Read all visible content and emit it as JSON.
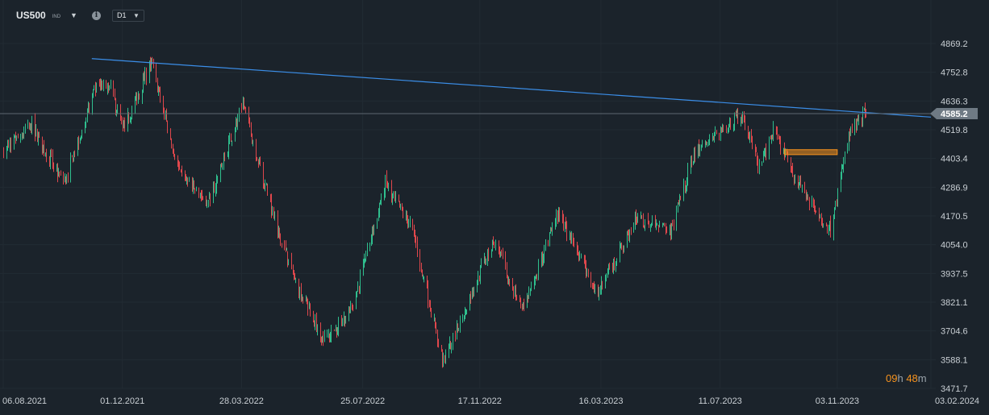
{
  "header": {
    "symbol": "US500",
    "symbol_type": "IND",
    "timeframe": "D1"
  },
  "countdown": {
    "hours": "09",
    "hours_unit": "h",
    "minutes": "48",
    "minutes_unit": "m"
  },
  "colors": {
    "background": "#1b232b",
    "up": "#2fbf8e",
    "down": "#e0474c",
    "trendline": "#3b8ee8",
    "current_price_tag": "#6f7a84",
    "zone": "#f7931e"
  },
  "chart_data": {
    "type": "candlestick",
    "symbol": "US500",
    "timeframe": "D1",
    "ylim": [
      3471.7,
      4940
    ],
    "y_ticks": [
      "4869.2",
      "4752.8",
      "4636.3",
      "4519.8",
      "4403.4",
      "4286.9",
      "4170.5",
      "4054.0",
      "3937.5",
      "3821.1",
      "3704.6",
      "3588.1",
      "3471.7"
    ],
    "x_ticks": [
      "06.08.2021",
      "01.12.2021",
      "28.03.2022",
      "25.07.2022",
      "17.11.2022",
      "16.03.2023",
      "11.07.2023",
      "03.11.2023",
      "03.02.2024"
    ],
    "x_range": [
      "2021-08-06",
      "2024-02-03"
    ],
    "current_price": 4585.2,
    "current_price_label": "4585.2",
    "trendline": {
      "start": [
        "2021-11-01",
        4808
      ],
      "end": [
        "2024-02-03",
        4571
      ]
    },
    "zone": {
      "start": "2023-09-12",
      "end": "2023-11-03",
      "low": 4419,
      "high": 4439
    },
    "series": [
      {
        "date": "2021-08-06",
        "value": 4437
      },
      {
        "date": "2021-09-03",
        "value": 4535
      },
      {
        "date": "2021-10-04",
        "value": 4300
      },
      {
        "date": "2021-11-04",
        "value": 4680
      },
      {
        "date": "2021-11-18",
        "value": 4704
      },
      {
        "date": "2021-12-01",
        "value": 4513
      },
      {
        "date": "2021-12-29",
        "value": 4793
      },
      {
        "date": "2022-01-27",
        "value": 4326
      },
      {
        "date": "2022-02-24",
        "value": 4225
      },
      {
        "date": "2022-03-29",
        "value": 4631
      },
      {
        "date": "2022-04-27",
        "value": 4183
      },
      {
        "date": "2022-05-20",
        "value": 3900
      },
      {
        "date": "2022-06-16",
        "value": 3666
      },
      {
        "date": "2022-07-14",
        "value": 3790
      },
      {
        "date": "2022-08-16",
        "value": 4305
      },
      {
        "date": "2022-09-12",
        "value": 4110
      },
      {
        "date": "2022-10-12",
        "value": 3577
      },
      {
        "date": "2022-11-17",
        "value": 3946
      },
      {
        "date": "2022-12-01",
        "value": 4080
      },
      {
        "date": "2022-12-28",
        "value": 3783
      },
      {
        "date": "2023-02-02",
        "value": 4179
      },
      {
        "date": "2023-03-13",
        "value": 3856
      },
      {
        "date": "2023-04-18",
        "value": 4155
      },
      {
        "date": "2023-05-24",
        "value": 4115
      },
      {
        "date": "2023-06-15",
        "value": 4425
      },
      {
        "date": "2023-07-31",
        "value": 4589
      },
      {
        "date": "2023-08-18",
        "value": 4370
      },
      {
        "date": "2023-09-01",
        "value": 4515
      },
      {
        "date": "2023-09-21",
        "value": 4330
      },
      {
        "date": "2023-10-27",
        "value": 4117
      },
      {
        "date": "2023-11-14",
        "value": 4495
      },
      {
        "date": "2023-12-01",
        "value": 4594
      }
    ]
  }
}
